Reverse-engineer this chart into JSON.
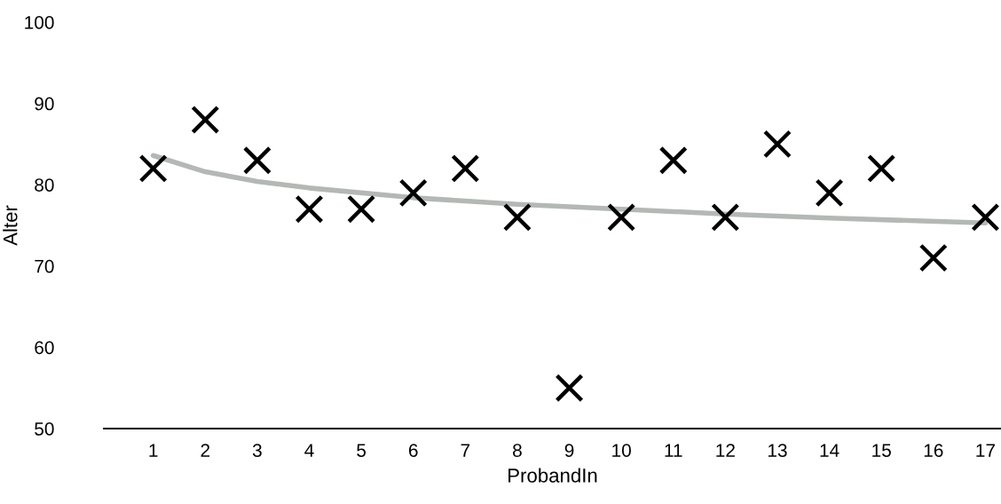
{
  "chart_data": {
    "type": "scatter",
    "xlabel": "ProbandIn",
    "ylabel": "Alter",
    "x": [
      1,
      2,
      3,
      4,
      5,
      6,
      7,
      8,
      9,
      10,
      11,
      12,
      13,
      14,
      15,
      16,
      17
    ],
    "series": [
      {
        "color": "#000000",
        "marker": "cross",
        "values": [
          82,
          88,
          83,
          77,
          77,
          79,
          82,
          76,
          55,
          76,
          83,
          76,
          85,
          79,
          82,
          71,
          76
        ]
      },
      {
        "type": "line",
        "color": "#b4b8b5",
        "marker": "none",
        "x": [
          1,
          2,
          3,
          4,
          6,
          8,
          10,
          12,
          14,
          17
        ],
        "values": [
          83.6,
          81.6,
          80.4,
          79.6,
          78.4,
          77.6,
          77.0,
          76.4,
          75.9,
          75.3
        ]
      }
    ],
    "xlim": [
      0.05,
      17.3
    ],
    "xticks": [
      1,
      2,
      3,
      4,
      5,
      6,
      7,
      8,
      9,
      10,
      11,
      12,
      13,
      14,
      15,
      16,
      17
    ],
    "ylim": [
      50,
      100
    ],
    "yticks": [
      50,
      60,
      70,
      80,
      90,
      100
    ],
    "grid": false,
    "legend": false
  }
}
